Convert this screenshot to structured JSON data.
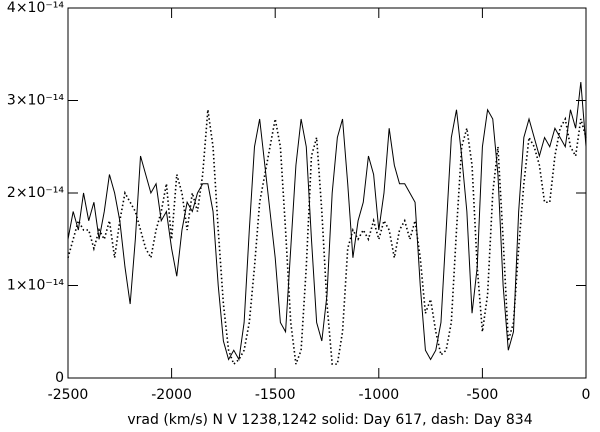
{
  "chart_data": {
    "type": "line",
    "xlabel": "vrad (km/s)  N V 1238,1242 solid: Day 617, dash: Day 834",
    "xlim": [
      -2500,
      0
    ],
    "xticks": [
      -2500,
      -2000,
      -1500,
      -1000,
      -500,
      0
    ],
    "ylim": [
      0,
      4e-14
    ],
    "yticks": [
      0,
      {
        "value": 1e-14,
        "label": "1×10⁻¹⁴"
      },
      {
        "value": 2e-14,
        "label": "2×10⁻¹⁴"
      },
      {
        "value": 3e-14,
        "label": "3×10⁻¹⁴"
      },
      {
        "value": 4e-14,
        "label": "4×10⁻¹⁴"
      }
    ],
    "x": [
      -2500,
      -2475,
      -2450,
      -2425,
      -2400,
      -2375,
      -2350,
      -2325,
      -2300,
      -2275,
      -2250,
      -2225,
      -2200,
      -2175,
      -2150,
      -2125,
      -2100,
      -2075,
      -2050,
      -2025,
      -2000,
      -1975,
      -1950,
      -1925,
      -1900,
      -1875,
      -1850,
      -1825,
      -1800,
      -1775,
      -1750,
      -1725,
      -1700,
      -1675,
      -1650,
      -1625,
      -1600,
      -1575,
      -1550,
      -1525,
      -1500,
      -1475,
      -1450,
      -1425,
      -1400,
      -1375,
      -1350,
      -1325,
      -1300,
      -1275,
      -1250,
      -1225,
      -1200,
      -1175,
      -1150,
      -1125,
      -1100,
      -1075,
      -1050,
      -1025,
      -1000,
      -975,
      -950,
      -925,
      -900,
      -875,
      -850,
      -825,
      -800,
      -775,
      -750,
      -725,
      -700,
      -675,
      -650,
      -625,
      -600,
      -575,
      -550,
      -525,
      -500,
      -475,
      -450,
      -425,
      -400,
      -375,
      -350,
      -325,
      -300,
      -275,
      -250,
      -225,
      -200,
      -175,
      -150,
      -125,
      -100,
      -75,
      -50,
      -25,
      0
    ],
    "series": [
      {
        "color": "#000000",
        "style": "solid",
        "values": [
          1.5e-14,
          1.8e-14,
          1.6e-14,
          2e-14,
          1.7e-14,
          1.9e-14,
          1.5e-14,
          1.8e-14,
          2.2e-14,
          2e-14,
          1.7e-14,
          1.2e-14,
          8e-15,
          1.5e-14,
          2.4e-14,
          2.2e-14,
          2e-14,
          2.1e-14,
          1.7e-14,
          1.8e-14,
          1.4e-14,
          1.1e-14,
          1.6e-14,
          1.9e-14,
          1.8e-14,
          2e-14,
          2.1e-14,
          2.1e-14,
          1.8e-14,
          1e-14,
          4e-15,
          2e-15,
          3e-15,
          2e-15,
          6e-15,
          1.6e-14,
          2.5e-14,
          2.8e-14,
          2.3e-14,
          1.8e-14,
          1.3e-14,
          6e-15,
          5e-15,
          1.4e-14,
          2.3e-14,
          2.8e-14,
          2.5e-14,
          1.5e-14,
          6e-15,
          4e-15,
          9e-15,
          2e-14,
          2.6e-14,
          2.8e-14,
          2.1e-14,
          1.3e-14,
          1.7e-14,
          1.9e-14,
          2.4e-14,
          2.2e-14,
          1.6e-14,
          2e-14,
          2.7e-14,
          2.3e-14,
          2.1e-14,
          2.1e-14,
          2e-14,
          1.9e-14,
          1e-14,
          3e-15,
          2e-15,
          3e-15,
          6e-15,
          1.6e-14,
          2.6e-14,
          2.9e-14,
          2.4e-14,
          1.8e-14,
          7e-15,
          1.2e-14,
          2.5e-14,
          2.9e-14,
          2.8e-14,
          2.2e-14,
          1e-14,
          3e-15,
          5e-15,
          1.8e-14,
          2.6e-14,
          2.8e-14,
          2.6e-14,
          2.4e-14,
          2.6e-14,
          2.5e-14,
          2.7e-14,
          2.6e-14,
          2.5e-14,
          2.9e-14,
          2.7e-14,
          3.2e-14,
          2.5e-14
        ]
      },
      {
        "color": "#000000",
        "style": "dotted",
        "values": [
          1.3e-14,
          1.5e-14,
          1.7e-14,
          1.6e-14,
          1.6e-14,
          1.4e-14,
          1.6e-14,
          1.5e-14,
          1.7e-14,
          1.3e-14,
          1.7e-14,
          2e-14,
          1.9e-14,
          1.8e-14,
          1.6e-14,
          1.4e-14,
          1.3e-14,
          1.6e-14,
          1.8e-14,
          2.1e-14,
          1.5e-14,
          2.2e-14,
          2e-14,
          1.6e-14,
          2e-14,
          1.8e-14,
          2.2e-14,
          2.9e-14,
          2.5e-14,
          1.6e-14,
          8e-15,
          3e-15,
          1.5e-15,
          2e-15,
          3e-15,
          6e-15,
          1.2e-14,
          1.9e-14,
          2.2e-14,
          2.5e-14,
          2.8e-14,
          2.5e-14,
          1.6e-14,
          6e-15,
          1.5e-15,
          3e-15,
          1.2e-14,
          2.4e-14,
          2.6e-14,
          1.8e-14,
          8e-15,
          1.5e-15,
          1.5e-15,
          5e-15,
          1.4e-14,
          1.6e-14,
          1.5e-14,
          1.6e-14,
          1.5e-14,
          1.7e-14,
          1.5e-14,
          1.7e-14,
          1.6e-14,
          1.3e-14,
          1.6e-14,
          1.7e-14,
          1.5e-14,
          1.7e-14,
          1.3e-14,
          7e-15,
          8.5e-15,
          5e-15,
          2.5e-15,
          3e-15,
          6e-15,
          1.6e-14,
          2.5e-14,
          2.7e-14,
          2.3e-14,
          1.2e-14,
          5e-15,
          9e-15,
          2e-14,
          2.5e-14,
          1.5e-14,
          4e-15,
          6e-15,
          1.4e-14,
          2.1e-14,
          2.6e-14,
          2.5e-14,
          2.3e-14,
          1.9e-14,
          1.9e-14,
          2.4e-14,
          2.7e-14,
          2.8e-14,
          2.5e-14,
          2.4e-14,
          2.8e-14,
          2.6e-14
        ]
      }
    ]
  }
}
